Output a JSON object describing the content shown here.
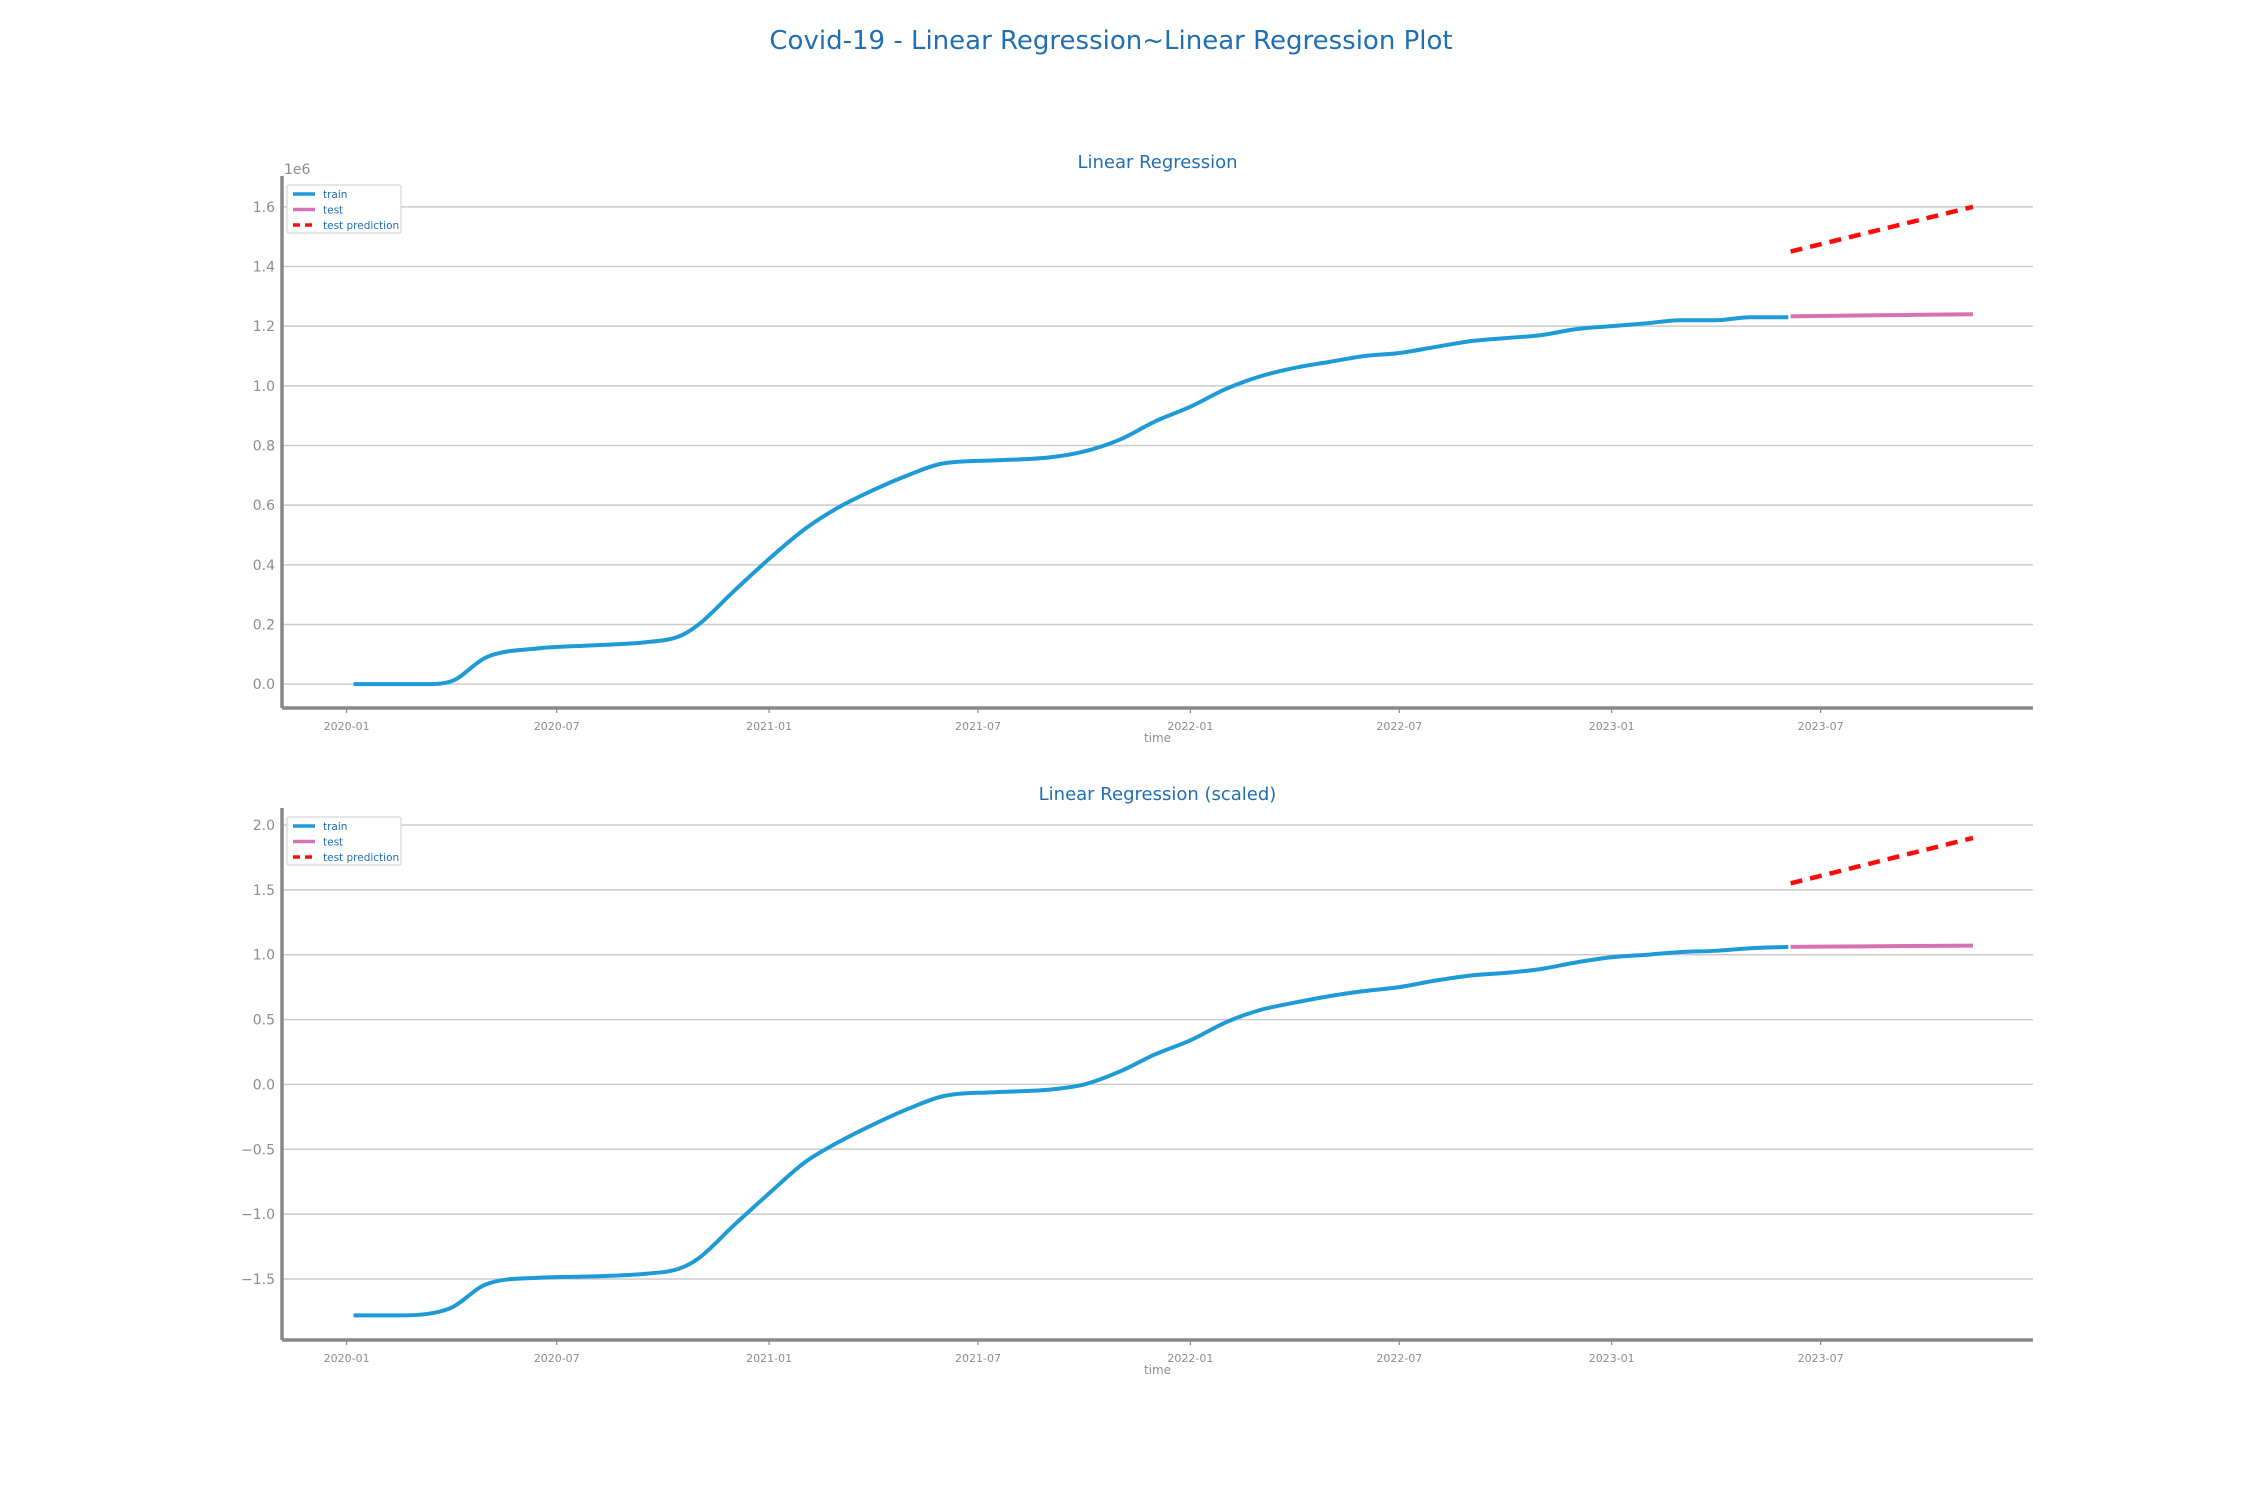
{
  "figure_title": "Covid-19 - Linear Regression~Linear Regression Plot",
  "colors": {
    "title": "#1f6fb2",
    "train": "#1e9bd7",
    "test": "#d672b4",
    "prediction": "#ff0a0a",
    "grid": "#cccccc",
    "axis": "#888888",
    "tick_text": "#8c8c8c"
  },
  "chart_data": [
    {
      "type": "line",
      "title": "Linear Regression",
      "xlabel": "time",
      "ylabel": "",
      "y_offset_label": "1e6",
      "xlim": [
        "2019-11-06",
        "2024-01-01"
      ],
      "ylim": [
        -0.08,
        1.69
      ],
      "x_ticks": [
        "2020-01",
        "2020-07",
        "2021-01",
        "2021-07",
        "2022-01",
        "2022-07",
        "2023-01",
        "2023-07"
      ],
      "y_ticks": [
        0.0,
        0.2,
        0.4,
        0.6,
        0.8,
        1.0,
        1.2,
        1.4,
        1.6
      ],
      "y_tick_labels": [
        "0.0",
        "0.2",
        "0.4",
        "0.6",
        "0.8",
        "1.0",
        "1.2",
        "1.4",
        "1.6"
      ],
      "grid": "horizontal",
      "legend_position": "top-left",
      "series": [
        {
          "name": "train",
          "style": "solid",
          "x": [
            "2020-01-07",
            "2020-02-15",
            "2020-03-10",
            "2020-04-01",
            "2020-05-01",
            "2020-06-15",
            "2020-08-01",
            "2020-09-15",
            "2020-10-15",
            "2020-11-01",
            "2020-12-01",
            "2021-01-01",
            "2021-02-01",
            "2021-03-01",
            "2021-04-01",
            "2021-05-01",
            "2021-06-01",
            "2021-07-15",
            "2021-09-01",
            "2021-10-01",
            "2021-11-01",
            "2021-12-01",
            "2022-01-01",
            "2022-02-01",
            "2022-03-01",
            "2022-04-01",
            "2022-05-01",
            "2022-06-01",
            "2022-07-01",
            "2022-08-01",
            "2022-09-01",
            "2022-10-01",
            "2022-11-01",
            "2022-12-01",
            "2023-01-01",
            "2023-02-01",
            "2023-03-01",
            "2023-04-01",
            "2023-05-01",
            "2023-06-03"
          ],
          "y": [
            0.0,
            0.0,
            0.0,
            0.01,
            0.09,
            0.12,
            0.13,
            0.14,
            0.16,
            0.2,
            0.31,
            0.42,
            0.52,
            0.59,
            0.65,
            0.7,
            0.74,
            0.75,
            0.76,
            0.78,
            0.82,
            0.88,
            0.93,
            0.99,
            1.03,
            1.06,
            1.08,
            1.1,
            1.11,
            1.13,
            1.15,
            1.16,
            1.17,
            1.19,
            1.2,
            1.21,
            1.22,
            1.22,
            1.23,
            1.23
          ]
        },
        {
          "name": "test",
          "style": "solid",
          "x": [
            "2023-06-05",
            "2023-07-15",
            "2023-09-01",
            "2023-11-10"
          ],
          "y": [
            1.233,
            1.235,
            1.237,
            1.24
          ]
        },
        {
          "name": "test prediction",
          "style": "dashed",
          "x": [
            "2023-06-05",
            "2023-11-10"
          ],
          "y": [
            1.45,
            1.6
          ]
        }
      ]
    },
    {
      "type": "line",
      "title": "Linear Regression (scaled)",
      "xlabel": "time",
      "ylabel": "",
      "xlim": [
        "2019-11-06",
        "2024-01-01"
      ],
      "ylim": [
        -1.97,
        2.1
      ],
      "x_ticks": [
        "2020-01",
        "2020-07",
        "2021-01",
        "2021-07",
        "2022-01",
        "2022-07",
        "2023-01",
        "2023-07"
      ],
      "y_ticks": [
        -1.5,
        -1.0,
        -0.5,
        0.0,
        0.5,
        1.0,
        1.5,
        2.0
      ],
      "y_tick_labels": [
        "−1.5",
        "−1.0",
        "−0.5",
        "0.0",
        "0.5",
        "1.0",
        "1.5",
        "2.0"
      ],
      "grid": "horizontal",
      "legend_position": "top-left",
      "series": [
        {
          "name": "train",
          "style": "solid",
          "x": [
            "2020-01-07",
            "2020-02-15",
            "2020-03-10",
            "2020-04-01",
            "2020-05-01",
            "2020-06-15",
            "2020-08-01",
            "2020-09-15",
            "2020-10-15",
            "2020-11-01",
            "2020-12-01",
            "2021-01-01",
            "2021-02-01",
            "2021-03-01",
            "2021-04-01",
            "2021-05-01",
            "2021-06-01",
            "2021-07-15",
            "2021-09-01",
            "2021-10-01",
            "2021-11-01",
            "2021-12-01",
            "2022-01-01",
            "2022-02-01",
            "2022-03-01",
            "2022-04-01",
            "2022-05-01",
            "2022-06-01",
            "2022-07-01",
            "2022-08-01",
            "2022-09-01",
            "2022-10-01",
            "2022-11-01",
            "2022-12-01",
            "2023-01-01",
            "2023-02-01",
            "2023-03-01",
            "2023-04-01",
            "2023-05-01",
            "2023-06-03"
          ],
          "y": [
            -1.78,
            -1.78,
            -1.77,
            -1.72,
            -1.54,
            -1.49,
            -1.48,
            -1.46,
            -1.42,
            -1.34,
            -1.09,
            -0.84,
            -0.6,
            -0.45,
            -0.31,
            -0.19,
            -0.09,
            -0.06,
            -0.04,
            0.0,
            0.1,
            0.23,
            0.34,
            0.48,
            0.57,
            0.63,
            0.68,
            0.72,
            0.75,
            0.8,
            0.84,
            0.86,
            0.89,
            0.94,
            0.98,
            1.0,
            1.02,
            1.03,
            1.05,
            1.06
          ]
        },
        {
          "name": "test",
          "style": "solid",
          "x": [
            "2023-06-05",
            "2023-07-15",
            "2023-09-01",
            "2023-11-10"
          ],
          "y": [
            1.06,
            1.063,
            1.066,
            1.07
          ]
        },
        {
          "name": "test prediction",
          "style": "dashed",
          "x": [
            "2023-06-05",
            "2023-11-10"
          ],
          "y": [
            1.55,
            1.9
          ]
        }
      ]
    }
  ]
}
